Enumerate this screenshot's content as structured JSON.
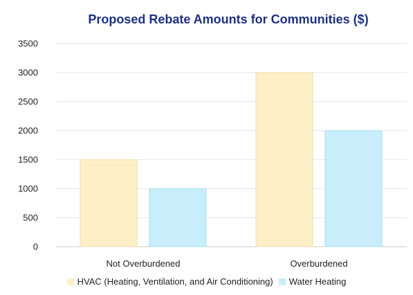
{
  "chart_data": {
    "type": "bar",
    "title": "Proposed Rebate Amounts for Communities ($)",
    "xlabel": "",
    "ylabel": "",
    "categories": [
      "Not Overburdened",
      "Overburdened"
    ],
    "series": [
      {
        "name": "HVAC (Heating, Ventilation, and Air Conditioning)",
        "values": [
          1500,
          3000
        ],
        "color": "#fdf0c8"
      },
      {
        "name": "Water Heating",
        "values": [
          1000,
          2000
        ],
        "color": "#c8eefb"
      }
    ],
    "ylim": [
      0,
      3500
    ],
    "yticks": [
      "0",
      "500",
      "1000",
      "1500",
      "2000",
      "2500",
      "3000",
      "3500"
    ],
    "grid": true,
    "legend": "bottom"
  }
}
